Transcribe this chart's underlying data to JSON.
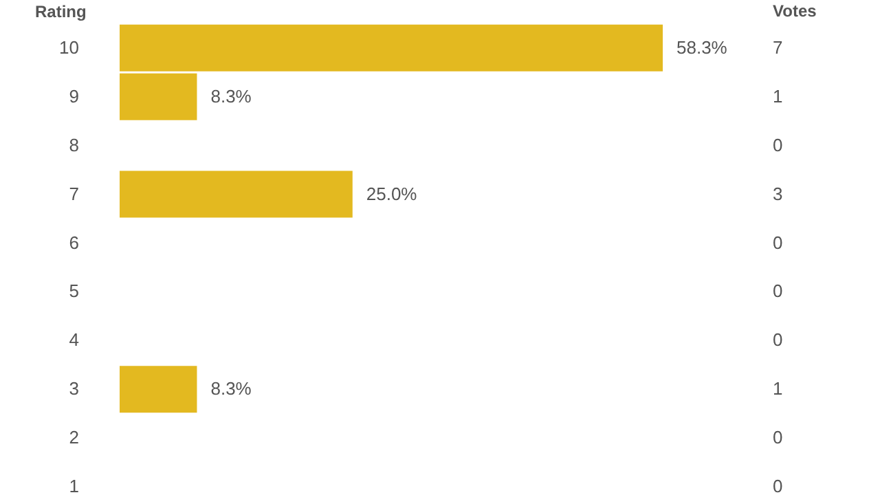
{
  "chart_data": {
    "type": "bar",
    "orientation": "horizontal",
    "ylabel": "Rating",
    "annotations": [
      "Votes"
    ],
    "categories": [
      "10",
      "9",
      "8",
      "7",
      "6",
      "5",
      "4",
      "3",
      "2",
      "1"
    ],
    "y2_categories": [
      "7",
      "1",
      "0",
      "3",
      "0",
      "0",
      "0",
      "1",
      "0",
      "0"
    ],
    "values": [
      58.3,
      8.3,
      0,
      25.0,
      0,
      0,
      0,
      8.3,
      0,
      0
    ],
    "value_labels": [
      "58.3%",
      "8.3%",
      null,
      "25.0%",
      null,
      null,
      null,
      "8.3%",
      null,
      null
    ],
    "color": "#e3b920",
    "tick_labels": "y",
    "grid": false
  }
}
